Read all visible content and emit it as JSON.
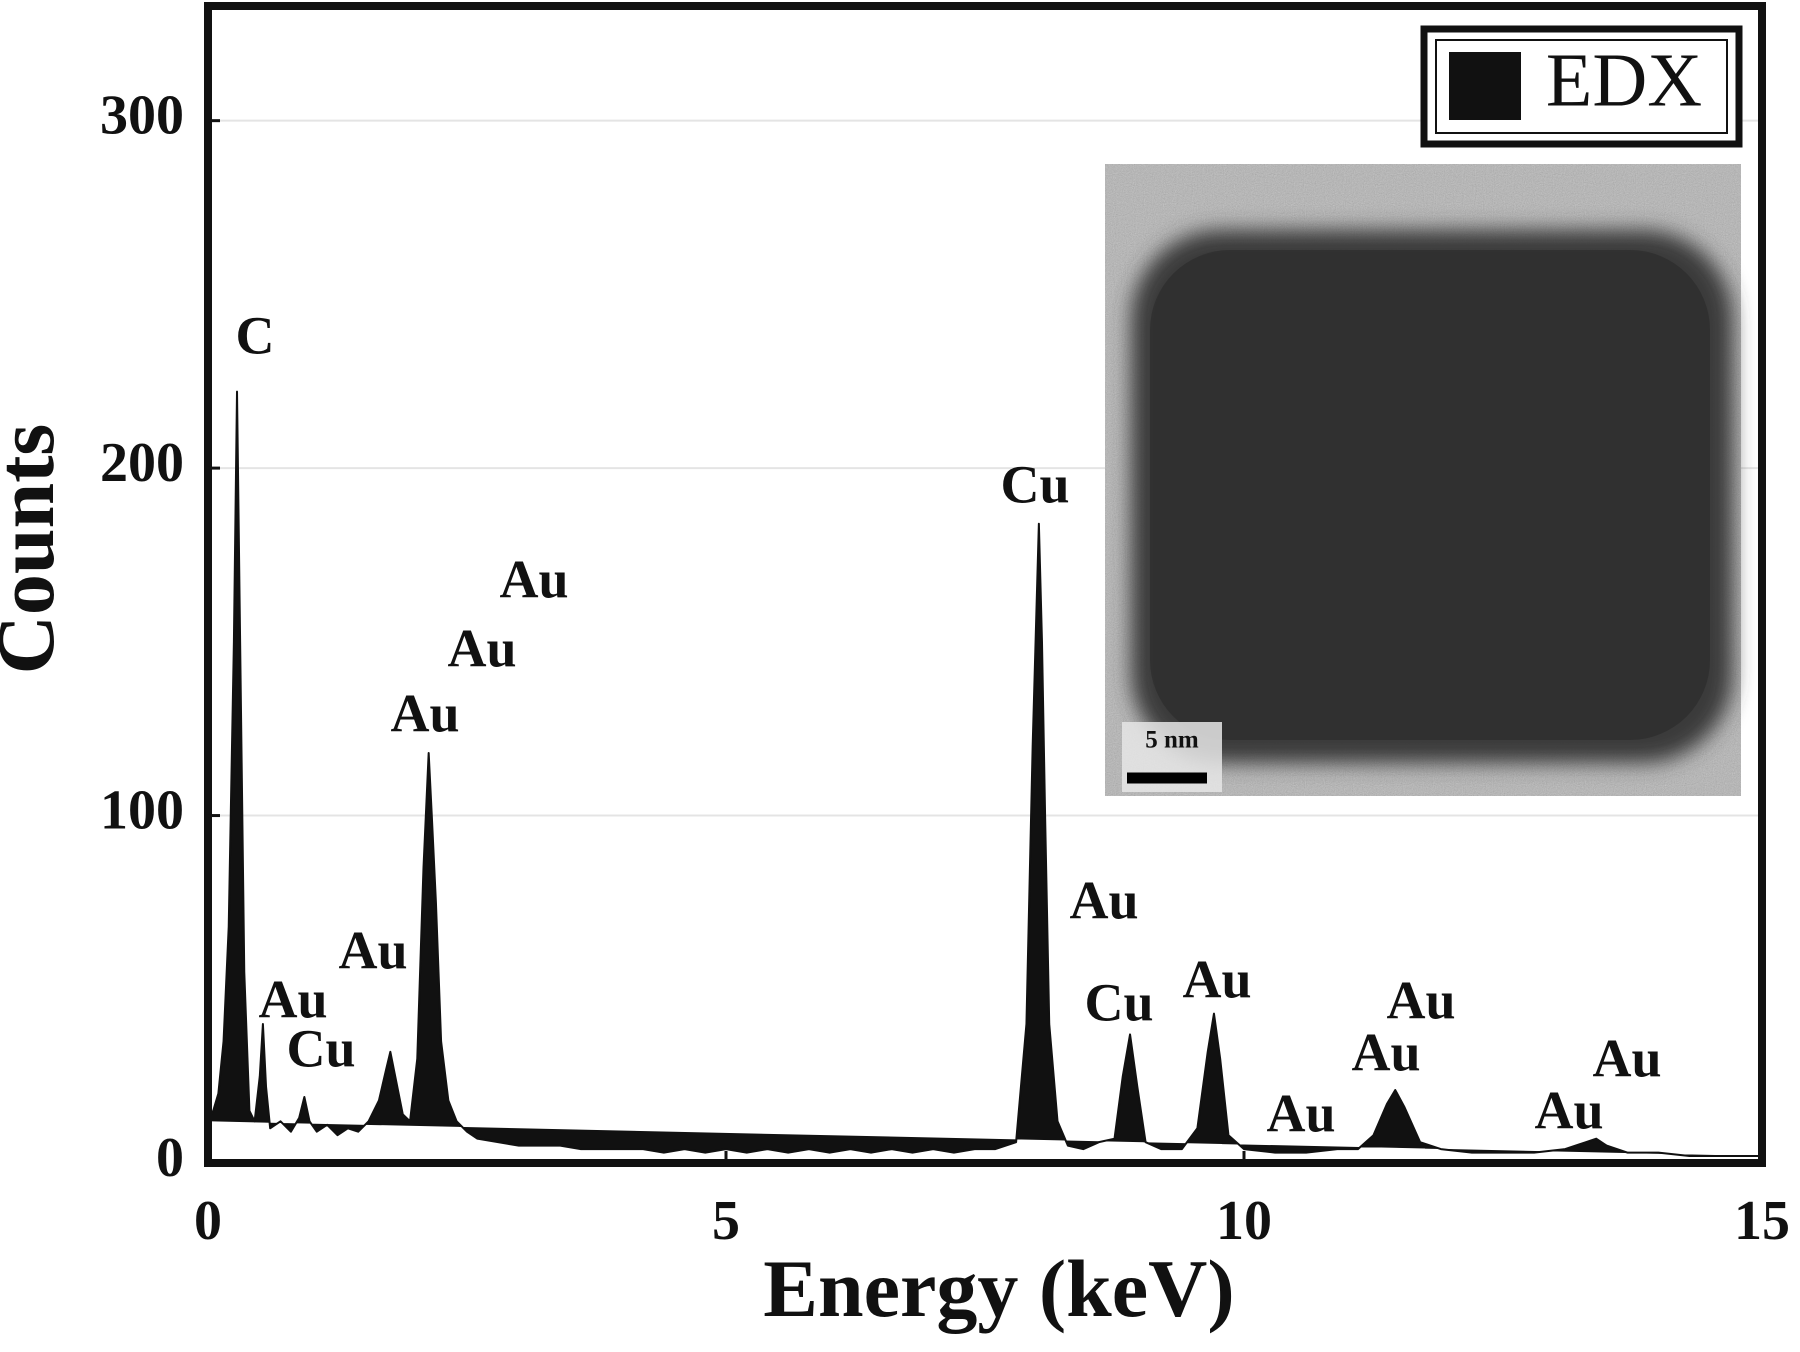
{
  "chart_data": {
    "type": "line",
    "x_label": "Energy (keV)",
    "y_label": "Counts",
    "xlim": [
      0,
      15
    ],
    "ylim": [
      0,
      333
    ],
    "xticks": [
      0,
      5,
      10,
      15
    ],
    "yticks": [
      0,
      100,
      200,
      300
    ],
    "grid": true,
    "legend": "upper right",
    "fill": true,
    "series": [
      {
        "name": "EDX",
        "color": "#111111",
        "x": [
          0,
          0.05,
          0.1,
          0.15,
          0.2,
          0.25,
          0.28,
          0.31,
          0.35,
          0.4,
          0.45,
          0.5,
          0.53,
          0.56,
          0.6,
          0.7,
          0.8,
          0.88,
          0.93,
          0.98,
          1.05,
          1.15,
          1.25,
          1.35,
          1.45,
          1.55,
          1.65,
          1.72,
          1.76,
          1.8,
          1.88,
          1.95,
          2.02,
          2.08,
          2.13,
          2.16,
          2.2,
          2.25,
          2.32,
          2.4,
          2.5,
          2.6,
          2.8,
          3,
          3.2,
          3.4,
          3.6,
          3.8,
          4,
          4.2,
          4.4,
          4.6,
          4.8,
          5,
          5.2,
          5.4,
          5.6,
          5.8,
          6,
          6.2,
          6.4,
          6.6,
          6.8,
          7,
          7.2,
          7.4,
          7.6,
          7.8,
          7.9,
          7.96,
          8.02,
          8.05,
          8.08,
          8.12,
          8.2,
          8.3,
          8.45,
          8.6,
          8.75,
          8.83,
          8.9,
          8.97,
          9.05,
          9.2,
          9.4,
          9.55,
          9.65,
          9.71,
          9.77,
          9.85,
          10,
          10.3,
          10.6,
          10.9,
          11.1,
          11.25,
          11.38,
          11.46,
          11.55,
          11.7,
          11.9,
          12.2,
          12.5,
          12.8,
          13.1,
          13.3,
          13.4,
          13.5,
          13.7,
          14,
          14.3,
          14.6,
          15
        ],
        "values": [
          12,
          15,
          20,
          35,
          68,
          150,
          222,
          150,
          55,
          15,
          12,
          25,
          40,
          22,
          10,
          12,
          9,
          13,
          19,
          12,
          9,
          11,
          8,
          10,
          9,
          12,
          18,
          27,
          32,
          26,
          14,
          12,
          30,
          85,
          118,
          100,
          75,
          35,
          18,
          12,
          9,
          7,
          6,
          5,
          5,
          5,
          4,
          4,
          4,
          4,
          3,
          4,
          3,
          4,
          3,
          4,
          3,
          4,
          3,
          4,
          3,
          4,
          3,
          4,
          3,
          4,
          4,
          6,
          40,
          120,
          184,
          150,
          100,
          40,
          12,
          5,
          4,
          6,
          7,
          25,
          37,
          22,
          6,
          4,
          4,
          10,
          32,
          43,
          30,
          8,
          4,
          3,
          3,
          4,
          4,
          8,
          17,
          21,
          16,
          6,
          4,
          3,
          3,
          3,
          4,
          6,
          7,
          5,
          3,
          3,
          2,
          2,
          2
        ]
      }
    ],
    "annotations": [
      "C",
      "Au",
      "Cu",
      "Au",
      "Au",
      "Au",
      "Au",
      "Cu",
      "Au",
      "Cu",
      "Au",
      "Au",
      "Au",
      "Au",
      "Au",
      "Au"
    ],
    "inset_label": "5 nm"
  }
}
